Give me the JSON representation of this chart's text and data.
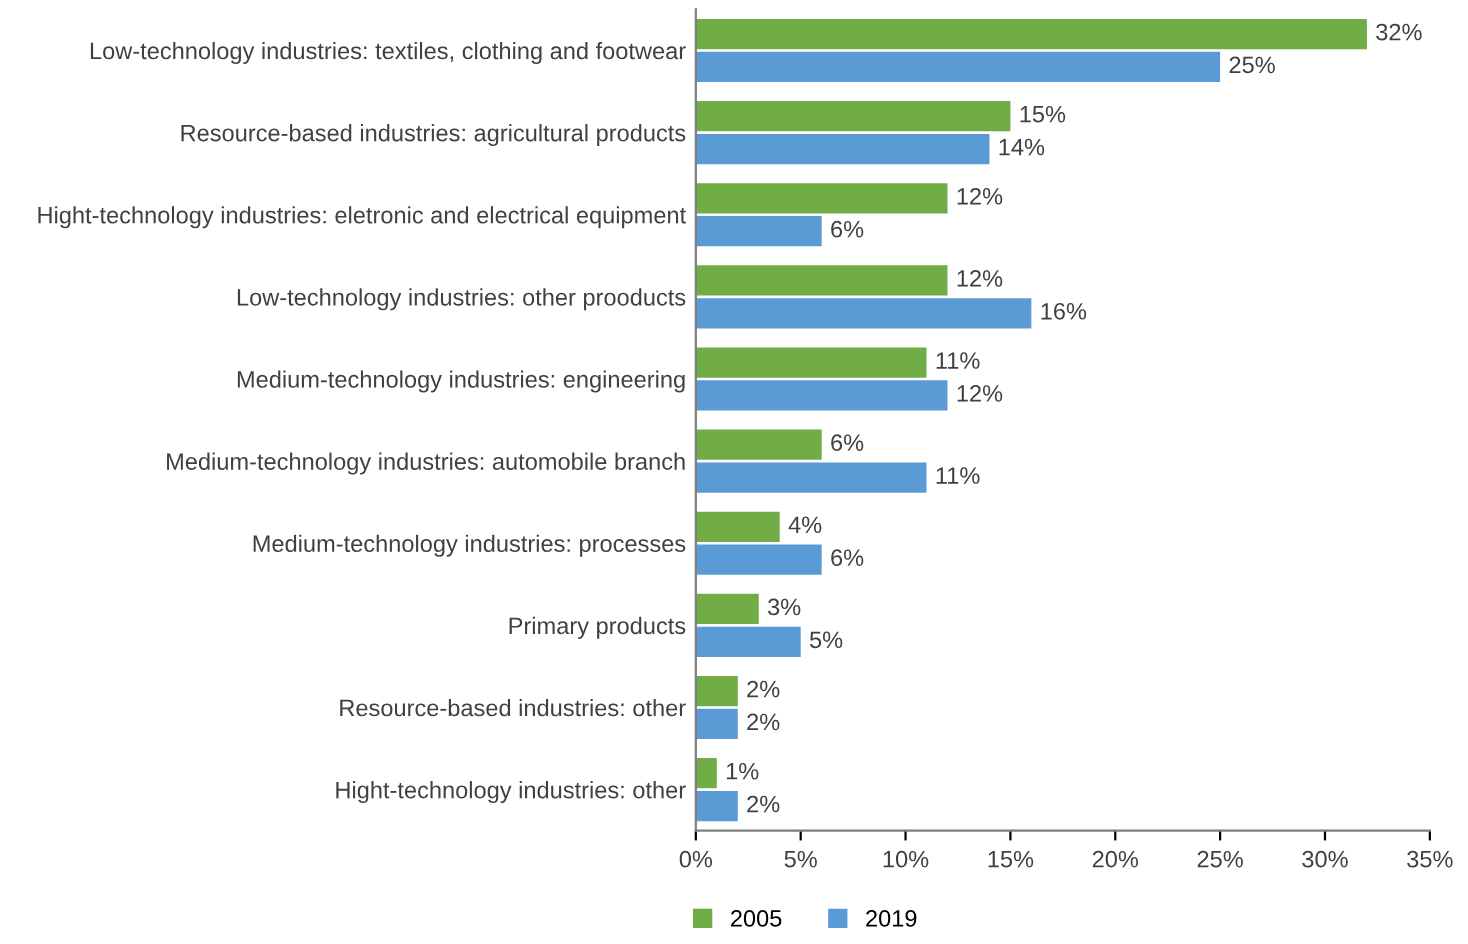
{
  "chart_data": {
    "type": "bar",
    "orientation": "horizontal",
    "categories": [
      "Low-technology industries: textiles, clothing and footwear",
      "Resource-based industries: agricultural products",
      "Hight-technology industries: eletronic and electrical equipment",
      "Low-technology industries: other prooducts",
      "Medium-technology industries: engineering",
      "Medium-technology industries: automobile branch",
      "Medium-technology industries: processes",
      "Primary products",
      "Resource-based industries: other",
      "Hight-technology industries: other"
    ],
    "series": [
      {
        "name": "2005",
        "color": "#70ad47",
        "values": [
          32,
          15,
          12,
          12,
          11,
          6,
          4,
          3,
          2,
          1
        ],
        "value_labels": [
          "32%",
          "15%",
          "12%",
          "12%",
          "11%",
          "6%",
          "4%",
          "3%",
          "2%",
          "1%"
        ]
      },
      {
        "name": "2019",
        "color": "#5b9bd5",
        "values": [
          25,
          14,
          6,
          16,
          12,
          11,
          6,
          5,
          2,
          2
        ],
        "value_labels": [
          "25%",
          "14%",
          "6%",
          "16%",
          "12%",
          "11%",
          "6%",
          "5%",
          "2%",
          "2%"
        ]
      }
    ],
    "xlim": [
      0,
      35
    ],
    "xticks": [
      {
        "value": 0,
        "label": "0%"
      },
      {
        "value": 5,
        "label": "5%"
      },
      {
        "value": 10,
        "label": "10%"
      },
      {
        "value": 15,
        "label": "15%"
      },
      {
        "value": 20,
        "label": "20%"
      },
      {
        "value": 25,
        "label": "25%"
      },
      {
        "value": 30,
        "label": "30%"
      },
      {
        "value": 35,
        "label": "35%"
      }
    ],
    "grid": false,
    "legend": "bottom"
  }
}
